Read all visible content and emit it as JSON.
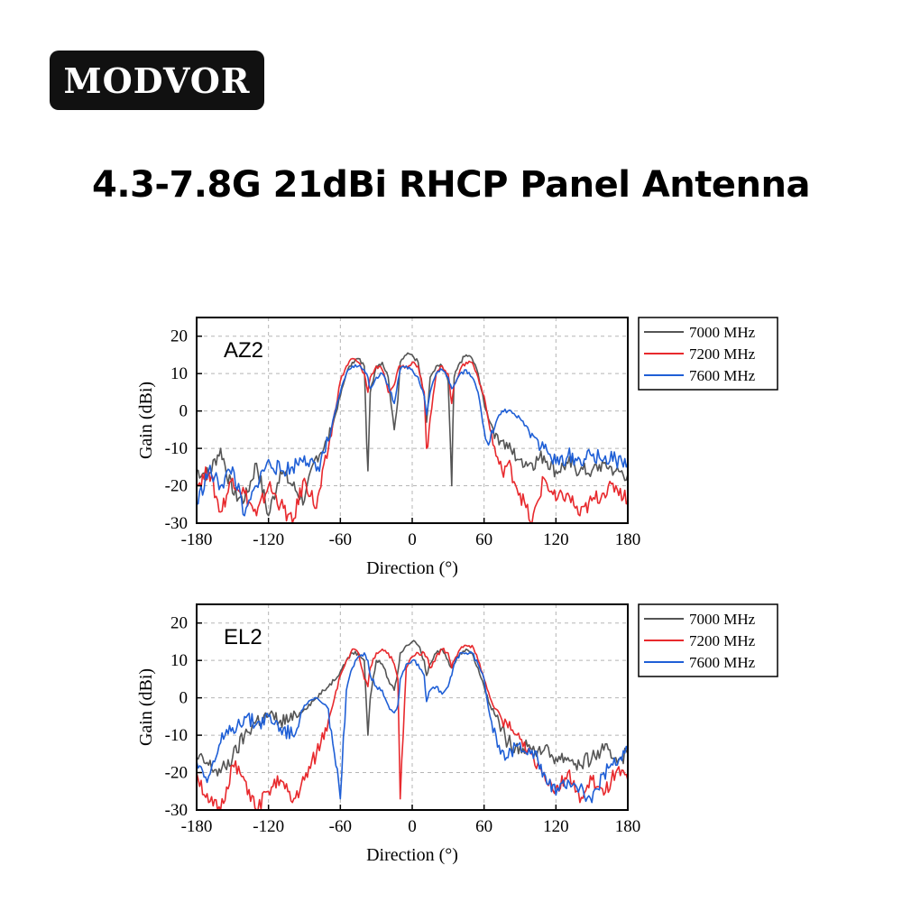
{
  "brand": {
    "logo_text": "MODVOR"
  },
  "page": {
    "title": "4.3-7.8G 21dBi RHCP Panel Antenna"
  },
  "colors": {
    "7000 MHz": "#555555",
    "7200 MHz": "#e8292d",
    "7600 MHz": "#1f5fd6"
  },
  "chart_data": [
    {
      "type": "line",
      "panel_label": "AZ2",
      "xlabel": "Direction (°)",
      "ylabel": "Gain (dBi)",
      "xlim": [
        -180,
        180
      ],
      "ylim": [
        -30,
        25
      ],
      "xticks": [
        -180,
        -120,
        -60,
        0,
        60,
        120,
        180
      ],
      "yticks": [
        20,
        10,
        0,
        -10,
        -20,
        -30
      ],
      "grid": true,
      "legend_position": "outside-right-top",
      "x": [
        -180,
        -170,
        -160,
        -150,
        -140,
        -130,
        -120,
        -110,
        -100,
        -90,
        -80,
        -70,
        -60,
        -55,
        -50,
        -45,
        -40,
        -37,
        -35,
        -30,
        -25,
        -20,
        -15,
        -12,
        -10,
        -5,
        0,
        5,
        10,
        12,
        15,
        20,
        25,
        30,
        33,
        35,
        40,
        45,
        50,
        55,
        60,
        65,
        70,
        75,
        80,
        90,
        100,
        110,
        120,
        130,
        140,
        150,
        160,
        170,
        180
      ],
      "series": [
        {
          "name": "7000 MHz",
          "values": [
            -16,
            -17,
            -10,
            -22,
            -24,
            -14,
            -28,
            -16,
            -20,
            -24,
            -12,
            -8,
            4,
            10,
            13,
            14,
            12,
            -16,
            5,
            12,
            13,
            9,
            -5,
            3,
            13,
            15,
            15,
            13,
            4,
            -3,
            9,
            12,
            12,
            8,
            -20,
            9,
            13,
            15,
            14,
            10,
            2,
            -3,
            -6,
            -8,
            -10,
            -13,
            -14,
            -12,
            -16,
            -14,
            -16,
            -16,
            -14,
            -16,
            -17
          ]
        },
        {
          "name": "7200 MHz",
          "values": [
            -20,
            -16,
            -27,
            -18,
            -22,
            -28,
            -20,
            -25,
            -30,
            -18,
            -26,
            -10,
            8,
            12,
            14,
            13,
            10,
            5,
            9,
            12,
            11,
            5,
            7,
            11,
            12,
            12,
            13,
            12,
            5,
            -10,
            -2,
            10,
            12,
            10,
            2,
            7,
            11,
            13,
            13,
            9,
            4,
            -5,
            -12,
            -16,
            -14,
            -22,
            -30,
            -18,
            -24,
            -22,
            -28,
            -24,
            -22,
            -20,
            -24
          ]
        },
        {
          "name": "7600 MHz",
          "values": [
            -25,
            -16,
            -20,
            -15,
            -28,
            -20,
            -13,
            -16,
            -15,
            -12,
            -16,
            -8,
            5,
            10,
            12,
            12,
            11,
            9,
            6,
            9,
            10,
            7,
            2,
            8,
            11,
            12,
            11,
            9,
            4,
            -1,
            5,
            10,
            11,
            9,
            6,
            7,
            10,
            11,
            9,
            5,
            -5,
            -8,
            -3,
            0,
            0,
            -2,
            -6,
            -10,
            -14,
            -12,
            -13,
            -12,
            -13,
            -13,
            -14
          ]
        }
      ]
    },
    {
      "type": "line",
      "panel_label": "EL2",
      "xlabel": "Direction (°)",
      "ylabel": "Gain (dBi)",
      "xlim": [
        -180,
        180
      ],
      "ylim": [
        -30,
        25
      ],
      "xticks": [
        -180,
        -120,
        -60,
        0,
        60,
        120,
        180
      ],
      "yticks": [
        20,
        10,
        0,
        -10,
        -20,
        -30
      ],
      "grid": true,
      "legend_position": "outside-right-top",
      "x": [
        -180,
        -170,
        -160,
        -150,
        -140,
        -130,
        -120,
        -110,
        -100,
        -90,
        -80,
        -70,
        -60,
        -55,
        -50,
        -45,
        -40,
        -37,
        -35,
        -30,
        -25,
        -20,
        -15,
        -12,
        -10,
        -5,
        0,
        5,
        10,
        12,
        15,
        20,
        25,
        30,
        33,
        35,
        40,
        45,
        50,
        55,
        60,
        65,
        70,
        75,
        80,
        90,
        100,
        110,
        120,
        130,
        140,
        150,
        160,
        170,
        180
      ],
      "series": [
        {
          "name": "7000 MHz",
          "values": [
            -16,
            -18,
            -20,
            -16,
            -10,
            -6,
            -5,
            -6,
            -6,
            -3,
            0,
            3,
            7,
            10,
            12,
            12,
            10,
            -10,
            0,
            10,
            9,
            5,
            2,
            7,
            12,
            14,
            15,
            14,
            10,
            6,
            9,
            12,
            13,
            10,
            8,
            9,
            12,
            13,
            12,
            8,
            3,
            -2,
            -5,
            -8,
            -12,
            -13,
            -14,
            -14,
            -16,
            -16,
            -18,
            -16,
            -14,
            -16,
            -15
          ]
        },
        {
          "name": "7200 MHz",
          "values": [
            -20,
            -28,
            -30,
            -18,
            -22,
            -30,
            -25,
            -22,
            -28,
            -22,
            -15,
            -6,
            6,
            10,
            13,
            12,
            5,
            3,
            8,
            12,
            13,
            12,
            9,
            5,
            -27,
            8,
            11,
            12,
            12,
            11,
            8,
            11,
            13,
            12,
            8,
            10,
            13,
            14,
            14,
            10,
            5,
            0,
            -3,
            -6,
            -8,
            -11,
            -15,
            -20,
            -24,
            -20,
            -28,
            -22,
            -26,
            -20,
            -22
          ]
        },
        {
          "name": "7600 MHz",
          "values": [
            -17,
            -21,
            -12,
            -8,
            -5,
            -7,
            -5,
            -8,
            -10,
            -2,
            0,
            -3,
            -27,
            2,
            8,
            11,
            12,
            10,
            6,
            3,
            2,
            -2,
            -4,
            -2,
            5,
            9,
            10,
            9,
            6,
            -1,
            2,
            3,
            1,
            3,
            6,
            9,
            12,
            12,
            12,
            9,
            5,
            -5,
            -10,
            -14,
            -16,
            -12,
            -14,
            -20,
            -26,
            -22,
            -24,
            -28,
            -20,
            -18,
            -14
          ]
        }
      ]
    }
  ]
}
